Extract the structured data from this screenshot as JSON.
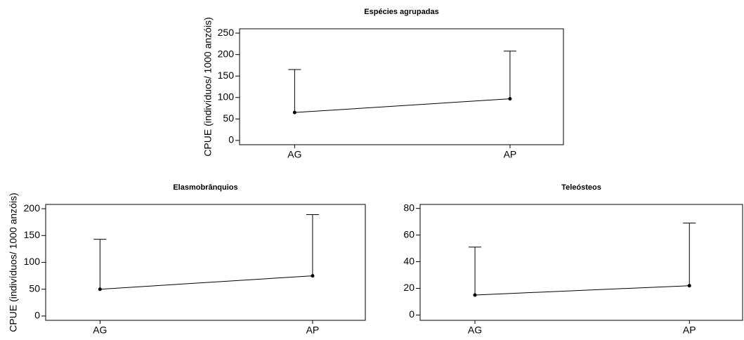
{
  "chart_data": [
    {
      "type": "line",
      "title": "Espécies agrupadas",
      "y_label": "CPUE (indivíduos/ 1000 anzóis)",
      "categories": [
        "AG",
        "AP"
      ],
      "values": [
        65,
        97
      ],
      "errors": [
        100,
        111
      ],
      "ylim": [
        -10,
        260
      ],
      "yticks": [
        0,
        50,
        100,
        150,
        200,
        250
      ],
      "color": "#000000"
    },
    {
      "type": "line",
      "title": "Elasmobrânquios",
      "y_label": "CPUE (indivíduos/ 1000 anzóis)",
      "categories": [
        "AG",
        "AP"
      ],
      "values": [
        50,
        75
      ],
      "errors": [
        93,
        114
      ],
      "ylim": [
        -8,
        208
      ],
      "yticks": [
        0,
        50,
        100,
        150,
        200
      ],
      "color": "#000000"
    },
    {
      "type": "line",
      "title": "Teleósteos",
      "categories": [
        "AG",
        "AP"
      ],
      "values": [
        15,
        22
      ],
      "errors": [
        36,
        47
      ],
      "ylim": [
        -4,
        83
      ],
      "yticks": [
        0,
        20,
        40,
        60,
        80
      ],
      "color": "#000000"
    }
  ]
}
